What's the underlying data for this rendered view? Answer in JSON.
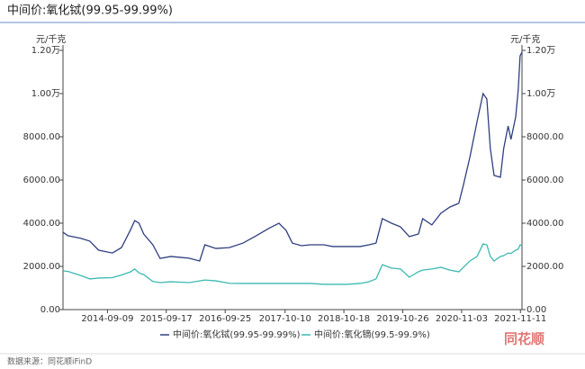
{
  "chart_data": {
    "type": "line",
    "title": "中间价:氧化铽(99.95-99.99%)",
    "y_unit": "元/千克",
    "y2_unit": "元/千克",
    "source": "数据来源：同花顺iFinD",
    "watermark": "同花顺",
    "xlim": [
      "2013-12-01",
      "2021-11-21"
    ],
    "xticks": [
      "2014-09-09",
      "2015-09-17",
      "2016-09-25",
      "2017-10-10",
      "2018-10-18",
      "2019-10-26",
      "2020-11-03",
      "2021-11-11"
    ],
    "ylim": [
      0,
      12000
    ],
    "yticks": [
      {
        "value": 0,
        "label": "0.00"
      },
      {
        "value": 2000,
        "label": "2000.00"
      },
      {
        "value": 4000,
        "label": "4000.00"
      },
      {
        "value": 6000,
        "label": "6000.00"
      },
      {
        "value": 8000,
        "label": "8000.00"
      },
      {
        "value": 10000,
        "label": "1.00万"
      },
      {
        "value": 12000,
        "label": "1.20万"
      }
    ],
    "y2lim": [
      0,
      12000
    ],
    "y2ticks": [
      {
        "value": 0,
        "label": "0.00"
      },
      {
        "value": 2000,
        "label": "2000.00"
      },
      {
        "value": 4000,
        "label": "4000.00"
      },
      {
        "value": 6000,
        "label": "6000.00"
      },
      {
        "value": 8000,
        "label": "8000.00"
      },
      {
        "value": 10000,
        "label": "1.00万"
      },
      {
        "value": 12000,
        "label": "1.20万"
      }
    ],
    "x": [
      "2013-12-01",
      "2014-01-01",
      "2014-03-23",
      "2014-05-20",
      "2014-07-15",
      "2014-10-10",
      "2014-12-07",
      "2015-02-03",
      "2015-03-01",
      "2015-03-28",
      "2015-04-27",
      "2015-06-24",
      "2015-08-09",
      "2015-10-16",
      "2015-12-13",
      "2016-02-09",
      "2016-04-16",
      "2016-05-19",
      "2016-07-28",
      "2016-10-21",
      "2017-01-16",
      "2017-04-10",
      "2017-07-06",
      "2017-09-01",
      "2017-10-16",
      "2017-11-25",
      "2018-01-22",
      "2018-03-19",
      "2018-06-13",
      "2018-08-09",
      "2018-11-03",
      "2019-01-29",
      "2019-03-26",
      "2019-05-10",
      "2019-06-19",
      "2019-08-16",
      "2019-10-12",
      "2019-12-07",
      "2020-02-03",
      "2020-03-01",
      "2020-04-28",
      "2020-06-24",
      "2020-08-21",
      "2020-10-16",
      "2020-11-15",
      "2020-12-25",
      "2021-02-09",
      "2021-03-19",
      "2021-04-12",
      "2021-05-04",
      "2021-05-28",
      "2021-07-07",
      "2021-07-28",
      "2021-08-25",
      "2021-09-12",
      "2021-10-12",
      "2021-10-28",
      "2021-11-09",
      "2021-11-21"
    ],
    "series": [
      {
        "name": "中间价:氧化铽(99.95-99.99%)",
        "color": "#2f3f7f",
        "values": [
          3580,
          3420,
          3300,
          3170,
          2750,
          2620,
          2870,
          3700,
          4120,
          4000,
          3500,
          3000,
          2370,
          2460,
          2420,
          2380,
          2250,
          3000,
          2830,
          2870,
          3080,
          3420,
          3790,
          4000,
          3670,
          3080,
          2960,
          3000,
          3000,
          2920,
          2920,
          2920,
          3000,
          3080,
          4210,
          4000,
          3830,
          3380,
          3500,
          4210,
          3920,
          4460,
          4750,
          4920,
          5790,
          7040,
          8710,
          10000,
          9750,
          7460,
          6210,
          6130,
          7460,
          8500,
          7880,
          8920,
          10170,
          11750,
          11920
        ]
      },
      {
        "name": "中间价:氧化镝(99.5-99.9%)",
        "color": "#3cb9b1",
        "axis": "y2",
        "values": [
          1790,
          1770,
          1580,
          1420,
          1460,
          1480,
          1600,
          1750,
          1880,
          1700,
          1620,
          1300,
          1250,
          1290,
          1270,
          1250,
          1330,
          1370,
          1330,
          1220,
          1210,
          1210,
          1210,
          1210,
          1210,
          1210,
          1210,
          1210,
          1170,
          1170,
          1170,
          1210,
          1290,
          1420,
          2080,
          1920,
          1880,
          1500,
          1750,
          1830,
          1880,
          1960,
          1830,
          1750,
          1960,
          2250,
          2460,
          3040,
          3000,
          2460,
          2250,
          2460,
          2500,
          2620,
          2600,
          2750,
          2800,
          3000,
          2950
        ]
      }
    ]
  }
}
